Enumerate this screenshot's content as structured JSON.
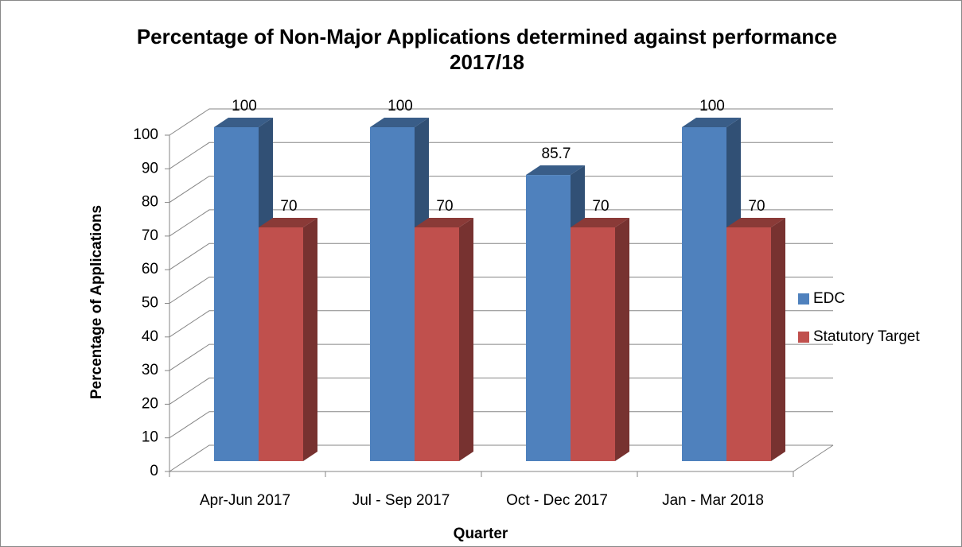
{
  "chart_data": {
    "type": "bar3d",
    "title": "Percentage of Non-Major Applications determined against performance 2017/18",
    "xlabel": "Quarter",
    "ylabel": "Percentage of Applications",
    "categories": [
      "Apr-Jun 2017",
      "Jul - Sep 2017",
      "Oct - Dec 2017",
      "Jan - Mar 2018"
    ],
    "series": [
      {
        "name": "EDC",
        "color": "#4f81bd",
        "values": [
          100,
          100,
          85.7,
          100
        ]
      },
      {
        "name": "Statutory Target",
        "color": "#c0504d",
        "values": [
          70,
          70,
          70,
          70
        ]
      }
    ],
    "ylim": [
      0,
      100
    ],
    "yticks": [
      0,
      10,
      20,
      30,
      40,
      50,
      60,
      70,
      80,
      90,
      100
    ],
    "grid": true,
    "legend": "right"
  }
}
